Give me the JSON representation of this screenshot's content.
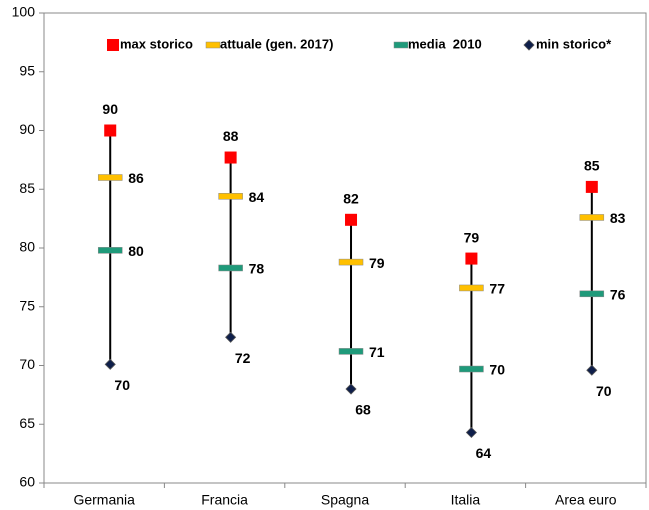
{
  "chart_data": {
    "type": "highlow",
    "categories": [
      "Germania",
      "Francia",
      "Spagna",
      "Italia",
      "Area euro"
    ],
    "series": [
      {
        "name": "max storico",
        "color": "#ff0000",
        "marker": "square",
        "values": [
          90.0,
          87.7,
          82.4,
          79.1,
          85.2
        ],
        "value_labels": [
          "90",
          "88",
          "82",
          "79",
          "85"
        ]
      },
      {
        "name": "attuale (gen. 2017)",
        "color": "#ffc000",
        "marker": "dash",
        "values": [
          86.0,
          84.4,
          78.8,
          76.6,
          82.6
        ],
        "value_labels": [
          "86",
          "84",
          "79",
          "77",
          "83"
        ]
      },
      {
        "name": "media  2010",
        "color": "#1f9a7a",
        "marker": "dash",
        "values": [
          79.8,
          78.3,
          71.2,
          69.7,
          76.1
        ],
        "value_labels": [
          "80",
          "78",
          "71",
          "70",
          "76"
        ]
      },
      {
        "name": "min storico*",
        "color": "#0f1f4a",
        "marker": "diamond",
        "values": [
          70.1,
          72.4,
          68.0,
          64.3,
          69.6
        ],
        "value_labels": [
          "70",
          "72",
          "68",
          "64",
          "70"
        ]
      }
    ],
    "ylim": [
      60,
      100
    ],
    "yticks": [
      60,
      65,
      70,
      75,
      80,
      85,
      90,
      95,
      100
    ],
    "legend": "top"
  }
}
